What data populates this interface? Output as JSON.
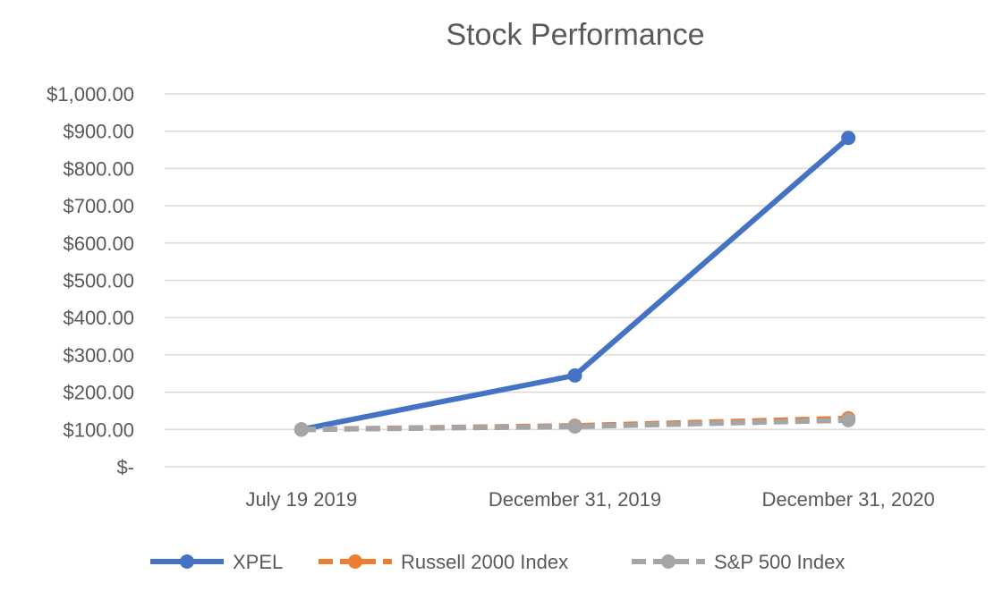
{
  "chart_data": {
    "type": "line",
    "title": "Stock Performance",
    "xlabel": "",
    "ylabel": "",
    "categories": [
      "July 19 2019",
      "December 31, 2019",
      "December 31, 2020"
    ],
    "ylim": [
      0,
      1000
    ],
    "yticks": [
      0,
      100,
      200,
      300,
      400,
      500,
      600,
      700,
      800,
      900,
      1000
    ],
    "ytick_labels": [
      "$-",
      "$100.00",
      "$200.00",
      "$300.00",
      "$400.00",
      "$500.00",
      "$600.00",
      "$700.00",
      "$800.00",
      "$900.00",
      "$1,000.00"
    ],
    "grid": true,
    "legend_position": "bottom",
    "series": [
      {
        "name": "XPEL",
        "values": [
          100,
          245,
          882
        ],
        "color": "#4472c4",
        "dashed": false
      },
      {
        "name": "Russell 2000 Index",
        "values": [
          100,
          110,
          130
        ],
        "color": "#ed7d31",
        "dashed": true
      },
      {
        "name": "S&P 500 Index",
        "values": [
          100,
          108,
          125
        ],
        "color": "#a5a5a5",
        "dashed": true
      }
    ]
  }
}
